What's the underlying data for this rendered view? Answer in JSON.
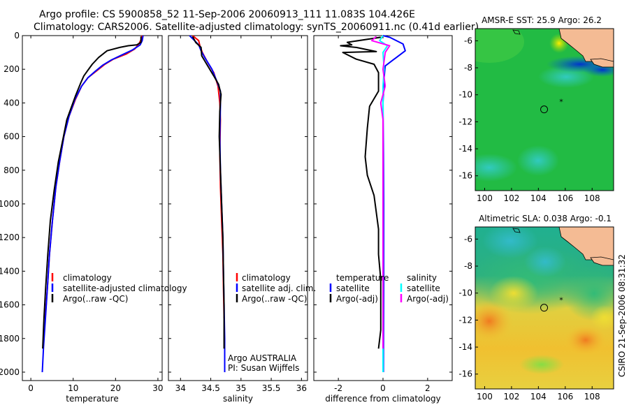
{
  "title": {
    "line1": "Argo profile: CS 5900858_52 11-Sep-2006 20060913_111 11.083S 104.426E",
    "line2": "Climatology: CARS2006. Satellite-adjusted climatology: synTS_20060911.nc (0.41d earlier)"
  },
  "side_label": "CSIRO 21-Sep-2006 08:31:32",
  "colors": {
    "climatology": "#ff0000",
    "satellite": "#0000ff",
    "argo": "#000000",
    "salinity_satellite": "#00ffff",
    "salinity_argo": "#ff00ff"
  },
  "chart_data": [
    {
      "id": "temperature",
      "type": "line",
      "xlabel": "temperature",
      "ylabel": "",
      "xlim": [
        -2,
        31
      ],
      "ylim": [
        2050,
        0
      ],
      "xticks": [
        "0",
        "10",
        "20",
        "30"
      ],
      "xtick_values": [
        0,
        10,
        20,
        30
      ],
      "yticks": [
        "0",
        "200",
        "400",
        "600",
        "800",
        "1000",
        "1200",
        "1400",
        "1600",
        "1800",
        "2000"
      ],
      "ytick_values": [
        0,
        200,
        400,
        600,
        800,
        1000,
        1200,
        1400,
        1600,
        1800,
        2000
      ],
      "legend": [
        "climatology",
        "satellite-adjusted climatology",
        "Argo(..raw -QC)"
      ],
      "series": [
        {
          "name": "climatology",
          "color": "#ff0000",
          "points": [
            [
              26.2,
              0
            ],
            [
              26.1,
              20
            ],
            [
              25.5,
              50
            ],
            [
              24.5,
              80
            ],
            [
              22.5,
              110
            ],
            [
              19.5,
              140
            ],
            [
              17.5,
              170
            ],
            [
              15.5,
              210
            ],
            [
              13.5,
              250
            ],
            [
              12.0,
              300
            ],
            [
              10.5,
              380
            ],
            [
              9.0,
              480
            ],
            [
              7.8,
              600
            ],
            [
              6.8,
              750
            ],
            [
              5.9,
              900
            ],
            [
              5.1,
              1100
            ],
            [
              4.4,
              1300
            ],
            [
              3.9,
              1500
            ],
            [
              3.4,
              1680
            ]
          ]
        },
        {
          "name": "satellite-adjusted climatology",
          "color": "#0000ff",
          "points": [
            [
              26.5,
              0
            ],
            [
              26.3,
              30
            ],
            [
              25.8,
              55
            ],
            [
              24.0,
              85
            ],
            [
              21.5,
              115
            ],
            [
              19.0,
              145
            ],
            [
              17.0,
              175
            ],
            [
              15.3,
              210
            ],
            [
              13.5,
              250
            ],
            [
              12.0,
              300
            ],
            [
              10.4,
              380
            ],
            [
              9.0,
              480
            ],
            [
              7.8,
              600
            ],
            [
              6.8,
              750
            ],
            [
              5.9,
              900
            ],
            [
              5.1,
              1100
            ],
            [
              4.4,
              1300
            ],
            [
              3.9,
              1500
            ],
            [
              3.4,
              1700
            ],
            [
              3.0,
              1850
            ],
            [
              2.7,
              2000
            ]
          ]
        },
        {
          "name": "Argo(..raw -QC)",
          "color": "#000000",
          "points": [
            [
              26.0,
              5
            ],
            [
              26.0,
              40
            ],
            [
              25.0,
              55
            ],
            [
              23.0,
              60
            ],
            [
              21.0,
              70
            ],
            [
              18.0,
              90
            ],
            [
              16.0,
              130
            ],
            [
              14.5,
              170
            ],
            [
              13.5,
              205
            ],
            [
              12.5,
              240
            ],
            [
              11.8,
              280
            ],
            [
              10.5,
              360
            ],
            [
              9.5,
              430
            ],
            [
              8.5,
              500
            ],
            [
              7.7,
              600
            ],
            [
              6.5,
              750
            ],
            [
              5.5,
              920
            ],
            [
              4.6,
              1100
            ],
            [
              4.0,
              1300
            ],
            [
              3.5,
              1500
            ],
            [
              3.1,
              1680
            ],
            [
              2.8,
              1860
            ]
          ]
        }
      ]
    },
    {
      "id": "salinity",
      "type": "line",
      "xlabel": "salinity",
      "ylabel": "",
      "xlim": [
        33.8,
        36.1
      ],
      "ylim": [
        2050,
        0
      ],
      "xticks": [
        "34",
        "34.5",
        "35",
        "35.5",
        "36"
      ],
      "xtick_values": [
        34,
        34.5,
        35,
        35.5,
        36
      ],
      "legend": [
        "climatology",
        "satellite adj. clim.",
        "Argo(..raw -QC)"
      ],
      "annotation": [
        "Argo AUSTRALIA",
        "PI: Susan Wijffels"
      ],
      "series": [
        {
          "name": "climatology",
          "color": "#ff0000",
          "points": [
            [
              34.2,
              0
            ],
            [
              34.3,
              30
            ],
            [
              34.32,
              60
            ],
            [
              34.36,
              100
            ],
            [
              34.45,
              160
            ],
            [
              34.55,
              220
            ],
            [
              34.62,
              300
            ],
            [
              34.65,
              400
            ],
            [
              34.66,
              500
            ],
            [
              34.65,
              700
            ],
            [
              34.66,
              900
            ],
            [
              34.68,
              1100
            ],
            [
              34.7,
              1300
            ],
            [
              34.71,
              1500
            ],
            [
              34.72,
              1680
            ]
          ]
        },
        {
          "name": "satellite adj. clim.",
          "color": "#0000ff",
          "points": [
            [
              34.15,
              0
            ],
            [
              34.22,
              25
            ],
            [
              34.3,
              55
            ],
            [
              34.34,
              90
            ],
            [
              34.4,
              130
            ],
            [
              34.52,
              200
            ],
            [
              34.6,
              270
            ],
            [
              34.66,
              330
            ],
            [
              34.66,
              420
            ],
            [
              34.65,
              600
            ],
            [
              34.66,
              800
            ],
            [
              34.68,
              1000
            ],
            [
              34.7,
              1200
            ],
            [
              34.71,
              1400
            ],
            [
              34.72,
              1600
            ],
            [
              34.73,
              1800
            ],
            [
              34.73,
              2000
            ]
          ]
        },
        {
          "name": "Argo(..raw -QC)",
          "color": "#000000",
          "points": [
            [
              34.2,
              5
            ],
            [
              34.25,
              40
            ],
            [
              34.34,
              70
            ],
            [
              34.35,
              120
            ],
            [
              34.45,
              180
            ],
            [
              34.55,
              240
            ],
            [
              34.63,
              290
            ],
            [
              34.67,
              350
            ],
            [
              34.65,
              450
            ],
            [
              34.64,
              600
            ],
            [
              34.66,
              800
            ],
            [
              34.68,
              1000
            ],
            [
              34.7,
              1200
            ],
            [
              34.71,
              1400
            ],
            [
              34.72,
              1600
            ],
            [
              34.72,
              1800
            ],
            [
              34.72,
              1860
            ]
          ]
        }
      ]
    },
    {
      "id": "difference",
      "type": "line",
      "xlabel": "difference from climatology",
      "ylabel": "",
      "xlim": [
        -3.1,
        3.1
      ],
      "ylim": [
        2050,
        0
      ],
      "xticks": [
        "-2",
        "0",
        "2"
      ],
      "xtick_values": [
        -2,
        0,
        2
      ],
      "legend_left_title": "temperature",
      "legend_left": [
        "satellite",
        "Argo(-adj)"
      ],
      "legend_right_title": "salinity",
      "legend_right": [
        "satellite",
        "Argo(-adj)"
      ],
      "series": [
        {
          "name": "temperature satellite",
          "color": "#0000ff",
          "points": [
            [
              0,
              0
            ],
            [
              0.3,
              10
            ],
            [
              0.9,
              50
            ],
            [
              1.0,
              90
            ],
            [
              0.6,
              130
            ],
            [
              0.4,
              150
            ],
            [
              0.1,
              180
            ],
            [
              0.05,
              250
            ],
            [
              0,
              400
            ],
            [
              0.02,
              700
            ],
            [
              0.03,
              1000
            ],
            [
              0.03,
              1500
            ],
            [
              0.02,
              2000
            ]
          ]
        },
        {
          "name": "temperature Argo(-adj)",
          "color": "#000000",
          "points": [
            [
              -0.1,
              10
            ],
            [
              -1.6,
              40
            ],
            [
              -1.4,
              55
            ],
            [
              -1.9,
              60
            ],
            [
              -1.2,
              70
            ],
            [
              -0.3,
              95
            ],
            [
              -1.8,
              100
            ],
            [
              -1.2,
              140
            ],
            [
              -0.4,
              170
            ],
            [
              -0.2,
              220
            ],
            [
              -0.2,
              330
            ],
            [
              -0.6,
              420
            ],
            [
              -0.7,
              550
            ],
            [
              -0.8,
              720
            ],
            [
              -0.7,
              830
            ],
            [
              -0.4,
              950
            ],
            [
              -0.2,
              1150
            ],
            [
              -0.2,
              1300
            ],
            [
              -0.1,
              1450
            ],
            [
              -0.1,
              1600
            ],
            [
              -0.1,
              1750
            ],
            [
              -0.2,
              1860
            ]
          ]
        },
        {
          "name": "salinity satellite",
          "color": "#00ffff",
          "points": [
            [
              0,
              0
            ],
            [
              -0.15,
              30
            ],
            [
              0.2,
              60
            ],
            [
              0,
              100
            ],
            [
              0.05,
              200
            ],
            [
              0,
              300
            ],
            [
              0,
              500
            ],
            [
              0,
              800
            ],
            [
              0,
              1200
            ],
            [
              0,
              1600
            ],
            [
              0,
              2000
            ]
          ]
        },
        {
          "name": "salinity Argo(-adj)",
          "color": "#ff00ff",
          "points": [
            [
              -0.3,
              5
            ],
            [
              -0.5,
              30
            ],
            [
              0.3,
              60
            ],
            [
              0.1,
              100
            ],
            [
              0,
              200
            ],
            [
              0.1,
              300
            ],
            [
              -0.1,
              400
            ],
            [
              0,
              500
            ],
            [
              0,
              800
            ],
            [
              0,
              1200
            ],
            [
              0,
              1600
            ],
            [
              0,
              1860
            ]
          ]
        }
      ]
    }
  ],
  "maps": [
    {
      "id": "sst_map",
      "title": "AMSR-E SST: 25.9 Argo: 26.2",
      "xticks": [
        "100",
        "102",
        "104",
        "106",
        "108"
      ],
      "xtick_values": [
        100,
        102,
        104,
        106,
        108
      ],
      "yticks": [
        "-6",
        "-8",
        "-10",
        "-12",
        "-14",
        "-16"
      ],
      "ytick_values": [
        -6,
        -8,
        -10,
        -12,
        -14,
        -16
      ],
      "lon_range": [
        99.3,
        109.6
      ],
      "lat_range": [
        -17.1,
        -5.1
      ],
      "float_position": [
        104.426,
        -11.083
      ],
      "star_position": [
        105.7,
        -10.45
      ]
    },
    {
      "id": "sla_map",
      "title": "Altimetric SLA: 0.038 Argo: -0.1",
      "xticks": [
        "100",
        "102",
        "104",
        "106",
        "108"
      ],
      "xtick_values": [
        100,
        102,
        104,
        106,
        108
      ],
      "yticks": [
        "-6",
        "-8",
        "-10",
        "-12",
        "-14",
        "-16"
      ],
      "ytick_values": [
        -6,
        -8,
        -10,
        -12,
        -14,
        -16
      ],
      "lon_range": [
        99.3,
        109.6
      ],
      "lat_range": [
        -17.1,
        -5.1
      ],
      "float_position": [
        104.426,
        -11.083
      ],
      "star_position": [
        105.7,
        -10.45
      ]
    }
  ]
}
